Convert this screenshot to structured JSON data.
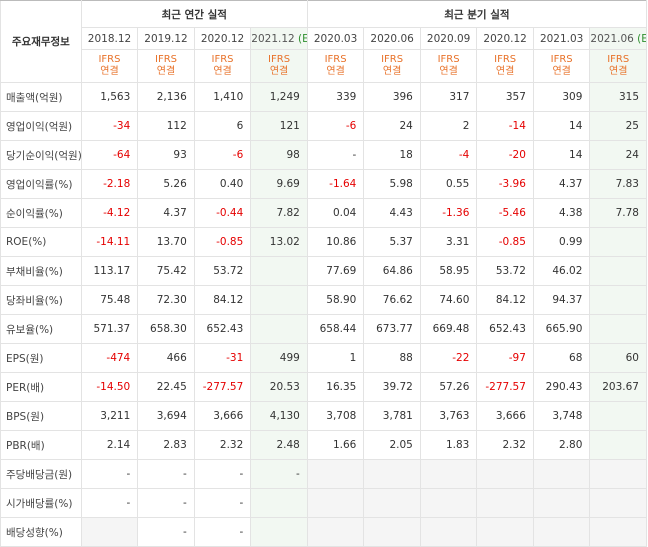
{
  "table": {
    "corner_label": "주요재무정보",
    "annual_header": "최근 연간 실적",
    "quarter_header": "최근 분기 실적",
    "columns": [
      {
        "period": "2018.12",
        "estimate": "",
        "standard": "IFRS",
        "basis": "연결",
        "type": "annual"
      },
      {
        "period": "2019.12",
        "estimate": "",
        "standard": "IFRS",
        "basis": "연결",
        "type": "annual"
      },
      {
        "period": "2020.12",
        "estimate": "",
        "standard": "IFRS",
        "basis": "연결",
        "type": "annual"
      },
      {
        "period": "2021.12",
        "estimate": "(E)",
        "standard": "IFRS",
        "basis": "연결",
        "type": "annual"
      },
      {
        "period": "2020.03",
        "estimate": "",
        "standard": "IFRS",
        "basis": "연결",
        "type": "quarter"
      },
      {
        "period": "2020.06",
        "estimate": "",
        "standard": "IFRS",
        "basis": "연결",
        "type": "quarter"
      },
      {
        "period": "2020.09",
        "estimate": "",
        "standard": "IFRS",
        "basis": "연결",
        "type": "quarter"
      },
      {
        "period": "2020.12",
        "estimate": "",
        "standard": "IFRS",
        "basis": "연결",
        "type": "quarter"
      },
      {
        "period": "2021.03",
        "estimate": "",
        "standard": "IFRS",
        "basis": "연결",
        "type": "quarter"
      },
      {
        "period": "2021.06",
        "estimate": "(E)",
        "standard": "IFRS",
        "basis": "연결",
        "type": "quarter"
      }
    ],
    "rows": [
      {
        "label": "매출액(억원)",
        "values": [
          "1,563",
          "2,136",
          "1,410",
          "1,249",
          "339",
          "396",
          "317",
          "357",
          "309",
          "315"
        ]
      },
      {
        "label": "영업이익(억원)",
        "values": [
          "-34",
          "112",
          "6",
          "121",
          "-6",
          "24",
          "2",
          "-14",
          "14",
          "25"
        ]
      },
      {
        "label": "당기순이익(억원)",
        "values": [
          "-64",
          "93",
          "-6",
          "98",
          "-",
          "18",
          "-4",
          "-20",
          "14",
          "24"
        ]
      },
      {
        "label": "영업이익률(%)",
        "values": [
          "-2.18",
          "5.26",
          "0.40",
          "9.69",
          "-1.64",
          "5.98",
          "0.55",
          "-3.96",
          "4.37",
          "7.83"
        ]
      },
      {
        "label": "순이익률(%)",
        "values": [
          "-4.12",
          "4.37",
          "-0.44",
          "7.82",
          "0.04",
          "4.43",
          "-1.36",
          "-5.46",
          "4.38",
          "7.78"
        ]
      },
      {
        "label": "ROE(%)",
        "values": [
          "-14.11",
          "13.70",
          "-0.85",
          "13.02",
          "10.86",
          "5.37",
          "3.31",
          "-0.85",
          "0.99",
          ""
        ]
      },
      {
        "label": "부채비율(%)",
        "values": [
          "113.17",
          "75.42",
          "53.72",
          "",
          "77.69",
          "64.86",
          "58.95",
          "53.72",
          "46.02",
          ""
        ]
      },
      {
        "label": "당좌비율(%)",
        "values": [
          "75.48",
          "72.30",
          "84.12",
          "",
          "58.90",
          "76.62",
          "74.60",
          "84.12",
          "94.37",
          ""
        ]
      },
      {
        "label": "유보율(%)",
        "values": [
          "571.37",
          "658.30",
          "652.43",
          "",
          "658.44",
          "673.77",
          "669.48",
          "652.43",
          "665.90",
          ""
        ]
      },
      {
        "label": "EPS(원)",
        "values": [
          "-474",
          "466",
          "-31",
          "499",
          "1",
          "88",
          "-22",
          "-97",
          "68",
          "60"
        ]
      },
      {
        "label": "PER(배)",
        "values": [
          "-14.50",
          "22.45",
          "-277.57",
          "20.53",
          "16.35",
          "39.72",
          "57.26",
          "-277.57",
          "290.43",
          "203.67"
        ]
      },
      {
        "label": "BPS(원)",
        "values": [
          "3,211",
          "3,694",
          "3,666",
          "4,130",
          "3,708",
          "3,781",
          "3,763",
          "3,666",
          "3,748",
          ""
        ]
      },
      {
        "label": "PBR(배)",
        "values": [
          "2.14",
          "2.83",
          "2.32",
          "2.48",
          "1.66",
          "2.05",
          "1.83",
          "2.32",
          "2.80",
          ""
        ]
      },
      {
        "label": "주당배당금(원)",
        "values": [
          "-",
          "-",
          "-",
          "-",
          null,
          null,
          null,
          null,
          null,
          null
        ]
      },
      {
        "label": "시가배당률(%)",
        "values": [
          "-",
          "-",
          "-",
          "",
          null,
          null,
          null,
          null,
          null,
          null
        ]
      },
      {
        "label": "배당성향(%)",
        "values": [
          null,
          "-",
          "-",
          "",
          null,
          null,
          null,
          null,
          null,
          null
        ]
      }
    ],
    "section_breaks": [
      3,
      6,
      9,
      13
    ]
  }
}
